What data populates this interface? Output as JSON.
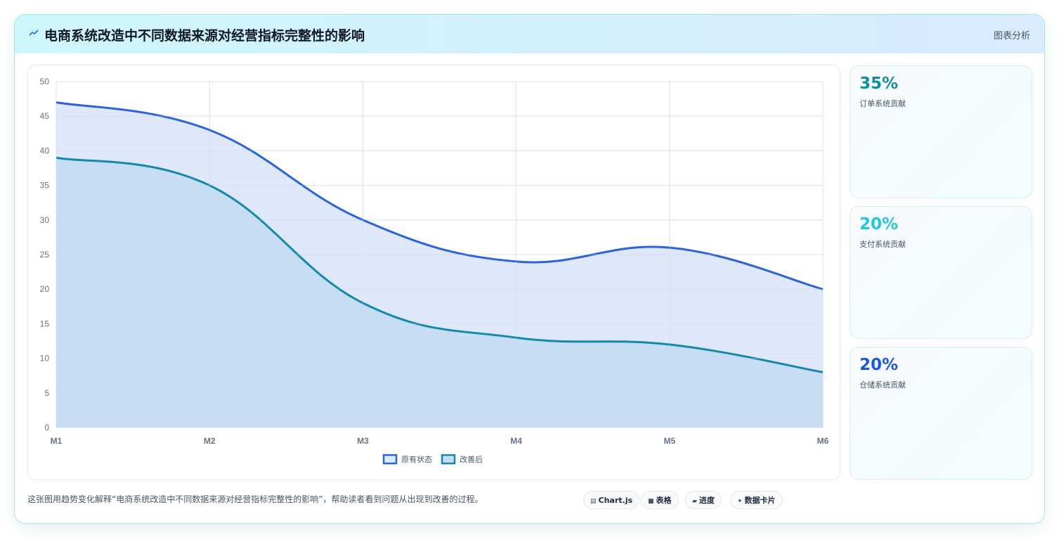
{
  "header": {
    "icon": "chart-icon",
    "title": "电商系统改造中不同数据来源对经营指标完整性的影响",
    "tag": "图表分析"
  },
  "kpis": [
    {
      "value": "35%",
      "label": "订单系统贡献",
      "color": "#0e8fa0"
    },
    {
      "value": "20%",
      "label": "支付系统贡献",
      "color": "#22c7dd"
    },
    {
      "value": "20%",
      "label": "仓储系统贡献",
      "color": "#1d5bd6"
    }
  ],
  "footer": {
    "text": "这张图用趋势变化解释“电商系统改造中不同数据来源对经营指标完整性的影响”，帮助读者看到问题从出现到改善的过程。",
    "chips": [
      {
        "icon": "chart-icon",
        "label": "Chart.js"
      },
      {
        "icon": "table-icon",
        "label": "表格"
      },
      {
        "icon": "progress-icon",
        "label": "进度"
      },
      {
        "icon": "card-icon",
        "label": "数据卡片"
      }
    ]
  },
  "chart_data": {
    "type": "area",
    "categories": [
      "M1",
      "M2",
      "M3",
      "M4",
      "M5",
      "M6"
    ],
    "ylim": [
      0,
      50
    ],
    "yticks": [
      0,
      5,
      10,
      15,
      20,
      25,
      30,
      35,
      40,
      45,
      50
    ],
    "grid": true,
    "legend": "bottom",
    "series": [
      {
        "name": "原有状态",
        "values": [
          47,
          43,
          30,
          24,
          26,
          20
        ],
        "color": "#2b63d9",
        "fill": "#dfe8fb"
      },
      {
        "name": "改善后",
        "values": [
          39,
          35,
          18,
          13,
          12,
          8
        ],
        "color": "#1589ac",
        "fill": "#c4dcf2"
      }
    ]
  },
  "colors": {
    "accent": "#2563eb",
    "border": "#a9e3ea"
  }
}
